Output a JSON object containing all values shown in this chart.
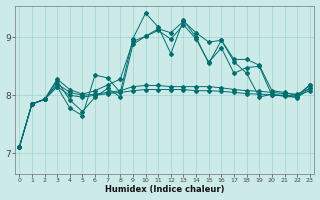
{
  "xlabel": "Humidex (Indice chaleur)",
  "bg_color": "#cceae8",
  "grid_color": "#a0d4d0",
  "line_color": "#006e6e",
  "x_ticks": [
    0,
    1,
    2,
    3,
    4,
    5,
    6,
    7,
    8,
    9,
    10,
    11,
    12,
    13,
    14,
    15,
    16,
    17,
    18,
    19,
    20,
    21,
    22,
    23
  ],
  "y_ticks": [
    7,
    8,
    9
  ],
  "ylim": [
    6.65,
    9.55
  ],
  "xlim": [
    -0.3,
    23.3
  ],
  "series": [
    [
      7.1,
      7.85,
      7.93,
      8.15,
      7.78,
      7.65,
      8.35,
      8.3,
      8.05,
      8.98,
      9.42,
      9.18,
      8.72,
      9.3,
      9.0,
      8.55,
      8.95,
      8.58,
      8.38,
      7.97,
      8.02,
      7.98,
      7.97,
      8.18
    ],
    [
      7.1,
      7.85,
      7.93,
      8.28,
      8.1,
      8.02,
      8.08,
      8.18,
      8.28,
      8.93,
      9.02,
      9.15,
      9.08,
      9.28,
      9.08,
      8.92,
      8.95,
      8.62,
      8.62,
      8.52,
      8.08,
      8.05,
      8.0,
      8.18
    ],
    [
      7.1,
      7.85,
      7.93,
      8.15,
      8.0,
      7.97,
      8.0,
      8.03,
      8.05,
      8.08,
      8.1,
      8.1,
      8.1,
      8.1,
      8.08,
      8.08,
      8.07,
      8.05,
      8.03,
      8.02,
      8.01,
      8.0,
      7.99,
      8.08
    ],
    [
      7.1,
      7.85,
      7.93,
      8.2,
      8.05,
      8.0,
      8.02,
      8.05,
      8.08,
      8.15,
      8.17,
      8.17,
      8.15,
      8.15,
      8.15,
      8.15,
      8.13,
      8.1,
      8.08,
      8.07,
      8.05,
      8.03,
      8.02,
      8.12
    ],
    [
      7.1,
      7.85,
      7.93,
      8.25,
      7.92,
      7.72,
      7.97,
      8.12,
      7.97,
      8.88,
      9.02,
      9.12,
      8.97,
      9.22,
      8.97,
      8.57,
      8.82,
      8.38,
      8.48,
      8.5,
      8.0,
      8.0,
      7.96,
      8.12
    ]
  ]
}
